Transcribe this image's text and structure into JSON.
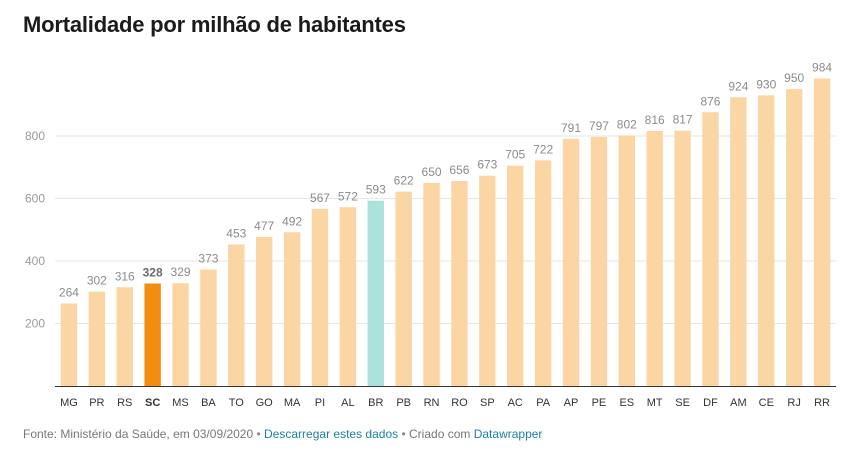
{
  "title": "Mortalidade por milhão de habitantes",
  "footer": {
    "source": "Fonte: Ministério da Saúde, em 03/09/2020",
    "separator": "•",
    "download_link": "Descarregar estes dados",
    "created_with": "Criado com",
    "tool_link": "Datawrapper"
  },
  "colors": {
    "default_bar": "#fad6a5",
    "highlight_sc": "#f28e0f",
    "highlight_br": "#abe3dc",
    "grid": "#e6e6e6",
    "value_label": "#8b8b8b"
  },
  "chart_data": {
    "type": "bar",
    "categories": [
      "MG",
      "PR",
      "RS",
      "SC",
      "MS",
      "BA",
      "TO",
      "GO",
      "MA",
      "PI",
      "AL",
      "BR",
      "PB",
      "RN",
      "RO",
      "SP",
      "AC",
      "PA",
      "AP",
      "PE",
      "ES",
      "MT",
      "SE",
      "DF",
      "AM",
      "CE",
      "RJ",
      "RR"
    ],
    "values": [
      264,
      302,
      316,
      328,
      329,
      373,
      453,
      477,
      492,
      567,
      572,
      593,
      622,
      650,
      656,
      673,
      705,
      722,
      791,
      797,
      802,
      816,
      817,
      876,
      924,
      930,
      950,
      984
    ],
    "highlighted": {
      "SC": "highlight_sc",
      "BR": "highlight_br"
    },
    "yticks": [
      200,
      400,
      600,
      800
    ],
    "ylim": [
      0,
      984
    ],
    "grid": true,
    "xlabel": "",
    "ylabel": ""
  }
}
